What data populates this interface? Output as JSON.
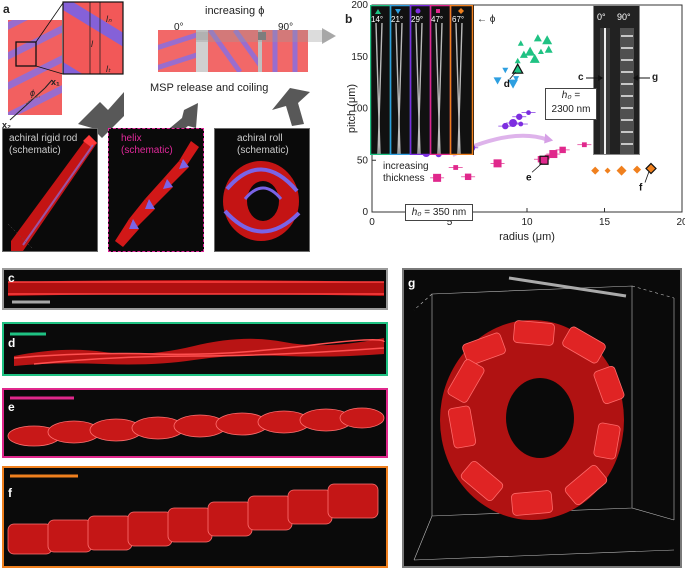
{
  "figure": {
    "panel_letters": [
      "a",
      "b",
      "c",
      "d",
      "e",
      "f",
      "g"
    ],
    "panel_a": {
      "top_label": "increasing ϕ",
      "angle_start": "0°",
      "angle_end": "90°",
      "release_text": "MSP release and coiling",
      "axis_x1": "x₁",
      "axis_x2": "x₂",
      "phi_symbol": "ϕ",
      "len_l": "l",
      "len_ln": "lₙ",
      "len_lt": "lₜ",
      "schematics": [
        {
          "line1": "achiral rigid rod",
          "line2": "(schematic)",
          "color": "#cccccc"
        },
        {
          "line1": "helix",
          "line2": "(schematic)",
          "color": "#e0289a"
        },
        {
          "line1": "achiral roll",
          "line2": "(schematic)",
          "color": "#cccccc"
        }
      ]
    },
    "panel_b": {
      "inset_angles": [
        "14°",
        "21°",
        "29°",
        "47°",
        "67°"
      ],
      "inset_phi": "← ϕ",
      "inset2_angles": [
        "0°",
        "90°"
      ],
      "callouts": [
        "d",
        "e",
        "f",
        "c",
        "g"
      ],
      "thickness_text_1": "increasing",
      "thickness_text_2": "thickness",
      "h0_low_sym": "h₀",
      "h0_low_val": "= 350 nm",
      "h0_high_sym": "h₀",
      "h0_high_val": "= 2300 nm"
    }
  },
  "chart_data": {
    "type": "scatter",
    "xlabel": "radius (μm)",
    "ylabel": "pitch (μm)",
    "xlim": [
      0,
      20
    ],
    "ylim": [
      0,
      200
    ],
    "xticks": [
      0,
      5,
      10,
      15,
      20
    ],
    "yticks": [
      0,
      50,
      100,
      150,
      200
    ],
    "series": [
      {
        "color": "#1fc283",
        "marker": "triangle",
        "points": [
          [
            9.6,
            163
          ],
          [
            10.7,
            168
          ],
          [
            11.3,
            166
          ],
          [
            9.4,
            146
          ],
          [
            9.8,
            152
          ],
          [
            10.2,
            155
          ],
          [
            10.9,
            155
          ],
          [
            11.4,
            157
          ],
          [
            10.5,
            148
          ]
        ]
      },
      {
        "color": "#2e9fe0",
        "marker": "triangle-down",
        "points": [
          [
            8.6,
            137
          ],
          [
            8.1,
            127
          ],
          [
            9.1,
            124
          ],
          [
            9.3,
            129
          ]
        ]
      },
      {
        "color": "#7d2ee0",
        "marker": "circle",
        "points": [
          [
            10.1,
            96
          ],
          [
            9.5,
            92
          ],
          [
            9.1,
            86
          ],
          [
            9.6,
            85
          ],
          [
            8.6,
            83
          ],
          [
            6.4,
            62
          ],
          [
            5.8,
            60
          ],
          [
            4.3,
            56
          ],
          [
            3.5,
            57
          ]
        ]
      },
      {
        "color": "#e0288c",
        "marker": "square",
        "points": [
          [
            13.7,
            65
          ],
          [
            12.3,
            60
          ],
          [
            11.7,
            56
          ],
          [
            11.3,
            53
          ],
          [
            10.9,
            51
          ],
          [
            8.1,
            47
          ],
          [
            5.4,
            43
          ],
          [
            6.2,
            34
          ],
          [
            4.2,
            33
          ]
        ]
      },
      {
        "color": "#f0801e",
        "marker": "diamond",
        "points": [
          [
            18.0,
            42
          ],
          [
            17.1,
            41
          ],
          [
            16.1,
            40
          ],
          [
            15.2,
            40
          ],
          [
            14.4,
            40
          ]
        ]
      }
    ],
    "highlighted": [
      {
        "label": "d",
        "x": 9.4,
        "y": 138,
        "marker": "triangle"
      },
      {
        "label": "e",
        "x": 11.1,
        "y": 50,
        "marker": "square"
      },
      {
        "label": "f",
        "x": 18.0,
        "y": 42,
        "marker": "diamond"
      }
    ]
  }
}
